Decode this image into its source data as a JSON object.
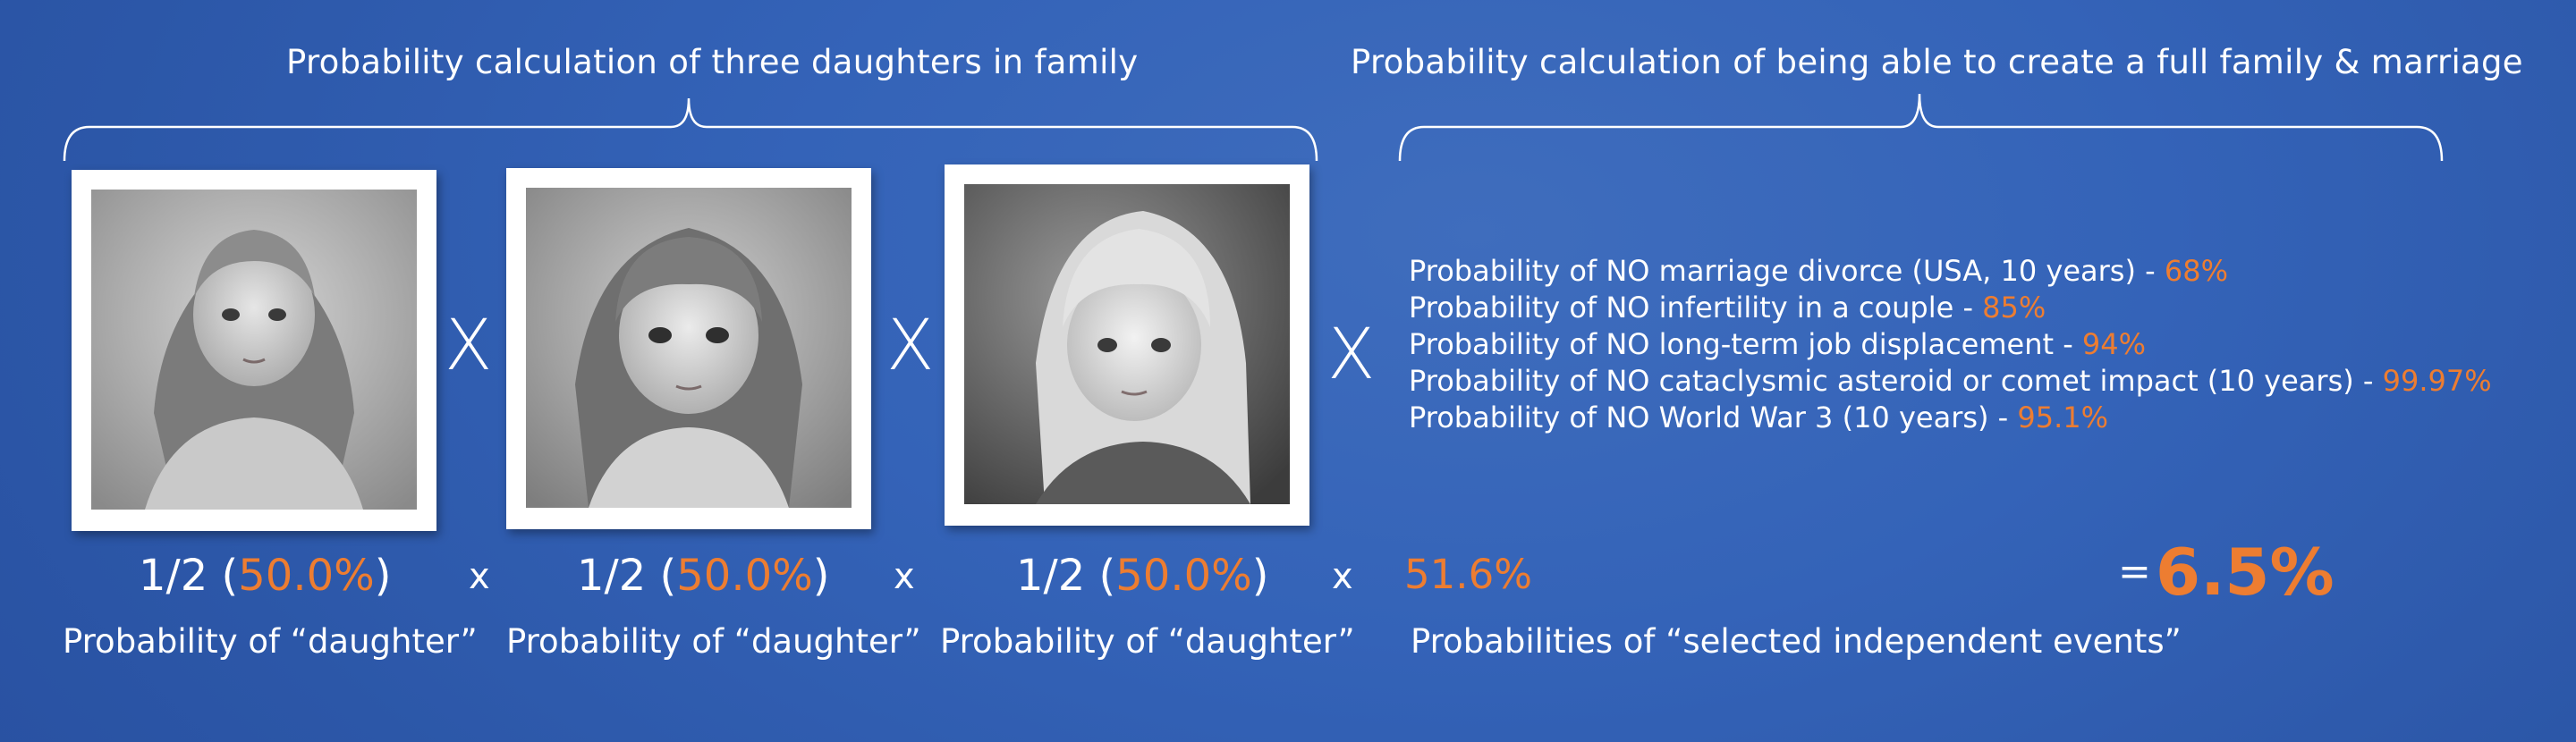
{
  "headers": {
    "left": "Probability calculation of three daughters in family",
    "right": "Probability calculation of being able to create a full family & marriage"
  },
  "photos": [
    {
      "alt": "Black and white portrait of a young girl"
    },
    {
      "alt": "Black and white portrait of a young girl"
    },
    {
      "alt": "Black and white portrait of a young girl"
    }
  ],
  "multiply_big": "X",
  "multiply_small": "x",
  "daughter_terms": [
    {
      "fraction": "1/2 (",
      "percent": "50.0%",
      "close": ")",
      "caption": "Probability of “daughter”"
    },
    {
      "fraction": "1/2 (",
      "percent": "50.0%",
      "close": ")",
      "caption": "Probability of “daughter”"
    },
    {
      "fraction": "1/2 (",
      "percent": "50.0%",
      "close": ")",
      "caption": "Probability of “daughter”"
    }
  ],
  "independent_events": {
    "items": [
      {
        "label": "Probability of NO marriage divorce (USA, 10 years) - ",
        "value": "68%"
      },
      {
        "label": "Probability of NO infertility in a couple - ",
        "value": "85%"
      },
      {
        "label": "Probability of NO long-term job displacement - ",
        "value": "94%"
      },
      {
        "label": "Probability of NO cataclysmic asteroid or comet impact (10 years) - ",
        "value": "99.97%"
      },
      {
        "label": "Probability of NO World War 3 (10 years) - ",
        "value": "95.1%"
      }
    ],
    "combined": "51.6%",
    "caption": "Probabilities of “selected independent events”"
  },
  "result": {
    "equals": "=",
    "value": "6.5%"
  },
  "colors": {
    "accent": "#ed7d31",
    "background": "#3463b8",
    "text": "#ffffff"
  }
}
